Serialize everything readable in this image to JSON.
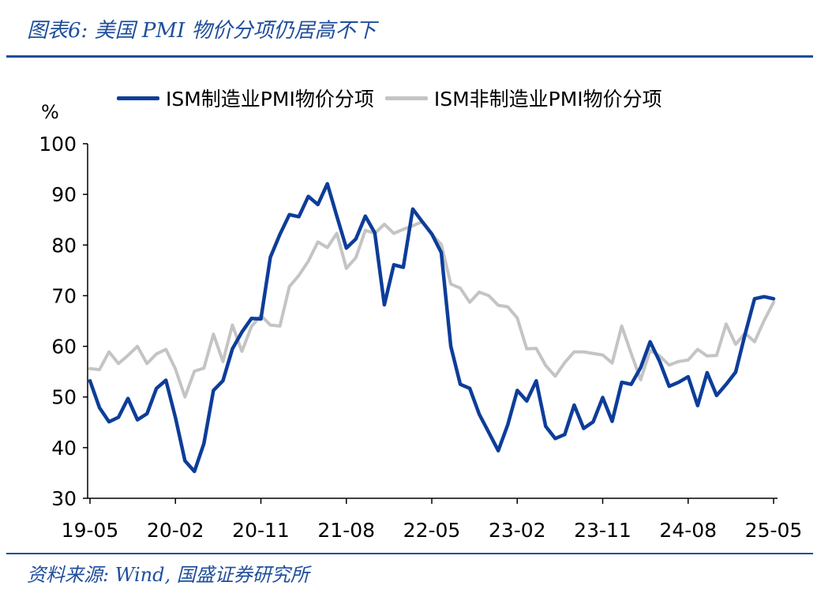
{
  "header": {
    "title": "图表6:  美国 PMI 物价分项仍居高不下"
  },
  "footer": {
    "source": "资料来源:  Wind,  国盛证券研究所"
  },
  "colors": {
    "accent": "#1f4e9c",
    "series_mfg": "#0d3d99",
    "series_nonmfg": "#c4c4c4"
  },
  "chart_data": {
    "type": "line",
    "title": "图表6: 美国 PMI 物价分项仍居高不下",
    "ylabel": "%",
    "ylim": [
      30,
      100
    ],
    "yticks": [
      "100",
      "90",
      "80",
      "70",
      "60",
      "50",
      "40",
      "30"
    ],
    "xtick_labels": [
      "19-05",
      "20-02",
      "20-11",
      "21-08",
      "22-05",
      "23-02",
      "23-11",
      "24-08",
      "25-05"
    ],
    "x": [
      "19-05",
      "19-06",
      "19-07",
      "19-08",
      "19-09",
      "19-10",
      "19-11",
      "19-12",
      "20-01",
      "20-02",
      "20-03",
      "20-04",
      "20-05",
      "20-06",
      "20-07",
      "20-08",
      "20-09",
      "20-10",
      "20-11",
      "20-12",
      "21-01",
      "21-02",
      "21-03",
      "21-04",
      "21-05",
      "21-06",
      "21-07",
      "21-08",
      "21-09",
      "21-10",
      "21-11",
      "21-12",
      "22-01",
      "22-02",
      "22-03",
      "22-04",
      "22-05",
      "22-06",
      "22-07",
      "22-08",
      "22-09",
      "22-10",
      "22-11",
      "22-12",
      "23-01",
      "23-02",
      "23-03",
      "23-04",
      "23-05",
      "23-06",
      "23-07",
      "23-08",
      "23-09",
      "23-10",
      "23-11",
      "23-12",
      "24-01",
      "24-02",
      "24-03",
      "24-04",
      "24-05",
      "24-06",
      "24-07",
      "24-08",
      "24-09",
      "24-10",
      "24-11",
      "24-12",
      "25-01",
      "25-02",
      "25-03",
      "25-04",
      "25-05"
    ],
    "series": [
      {
        "name": "ISM制造业PMI物价分项",
        "color": "#0d3d99",
        "values": [
          53.2,
          47.9,
          45.1,
          46.0,
          49.7,
          45.5,
          46.7,
          51.7,
          53.3,
          45.9,
          37.4,
          35.3,
          40.8,
          51.3,
          53.2,
          59.5,
          62.8,
          65.5,
          65.4,
          77.6,
          82.1,
          86.0,
          85.6,
          89.6,
          88.0,
          92.1,
          85.7,
          79.4,
          81.2,
          85.7,
          82.4,
          68.2,
          76.1,
          75.6,
          87.1,
          84.6,
          82.2,
          78.5,
          60.0,
          52.5,
          51.7,
          46.6,
          43.0,
          39.4,
          44.5,
          51.3,
          49.2,
          53.2,
          44.2,
          41.8,
          42.6,
          48.4,
          43.8,
          45.1,
          49.9,
          45.2,
          52.9,
          52.5,
          55.8,
          60.9,
          57.0,
          52.1,
          52.9,
          54.0,
          48.3,
          54.8,
          50.3,
          52.5,
          54.9,
          62.4,
          69.4,
          69.8,
          69.4
        ]
      },
      {
        "name": "ISM非制造业PMI物价分项",
        "color": "#c4c4c4",
        "values": [
          55.6,
          55.4,
          58.9,
          56.6,
          58.2,
          60.0,
          56.6,
          58.5,
          59.4,
          55.5,
          50.0,
          55.1,
          55.7,
          62.4,
          57.0,
          64.2,
          59.0,
          63.9,
          66.1,
          64.2,
          64.0,
          71.8,
          74.0,
          76.8,
          80.6,
          79.5,
          82.3,
          75.4,
          77.5,
          82.9,
          82.3,
          84.1,
          82.3,
          83.1,
          83.8,
          84.6,
          82.1,
          80.1,
          72.3,
          71.5,
          68.7,
          70.7,
          70.0,
          68.1,
          67.8,
          65.6,
          59.5,
          59.6,
          56.2,
          54.1,
          56.8,
          58.9,
          58.9,
          58.6,
          58.3,
          56.7,
          64.0,
          58.6,
          53.4,
          59.2,
          58.1,
          56.3,
          57.0,
          57.3,
          59.4,
          58.1,
          58.2,
          64.4,
          60.4,
          62.6,
          60.9,
          65.1,
          68.7
        ]
      }
    ],
    "legend": "top"
  }
}
